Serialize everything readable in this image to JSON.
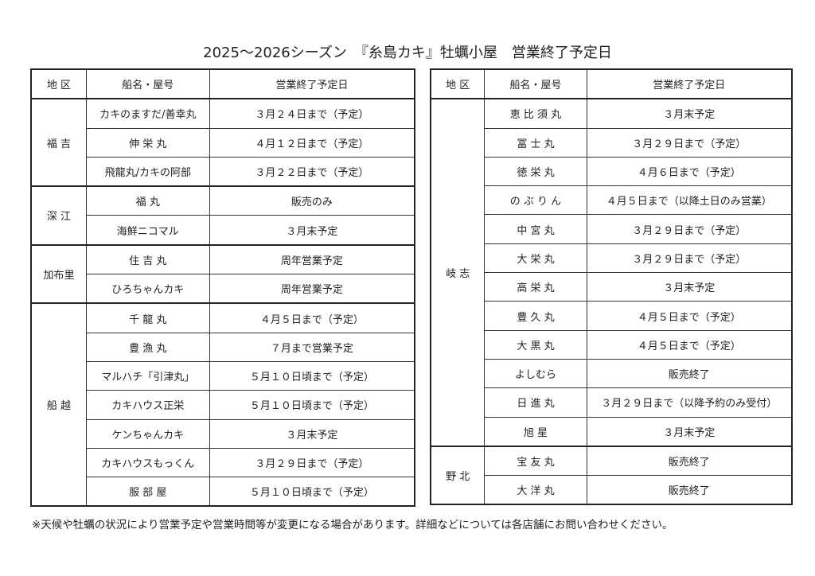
{
  "title": "2025〜2026シーズン　『糸島カキ』牡蠣小屋　営業終了予定日",
  "tables": [
    {
      "headers": [
        "地 区",
        "船名・屋号",
        "営業終了予定日"
      ],
      "groups": [
        {
          "area": "福 吉",
          "rows": [
            [
              "カキのますだ/善幸丸",
              "３月２４日まで（予定）"
            ],
            [
              "伸 栄 丸",
              "４月１２日まで（予定）"
            ],
            [
              "飛龍丸/カキの阿部",
              "３月２２日まで（予定）"
            ]
          ]
        },
        {
          "area": "深 江",
          "rows": [
            [
              "福 丸",
              "販売のみ"
            ],
            [
              "海鮮ニコマル",
              "３月末予定"
            ]
          ]
        },
        {
          "area": "加布里",
          "rows": [
            [
              "住 吉 丸",
              "周年営業予定"
            ],
            [
              "ひろちゃんカキ",
              "周年営業予定"
            ]
          ]
        },
        {
          "area": "船 越",
          "rows": [
            [
              "千 龍 丸",
              "４月５日まで（予定）"
            ],
            [
              "豊 漁 丸",
              "７月まで営業予定"
            ],
            [
              "マルハチ「引津丸」",
              "５月１０日頃まで（予定）"
            ],
            [
              "カキハウス正栄",
              "５月１０日頃まで（予定）"
            ],
            [
              "ケンちゃんカキ",
              "３月末予定"
            ],
            [
              "カキハウスもっくん",
              "３月２９日まで（予定）"
            ],
            [
              "服 部 屋",
              "５月１０日頃まで（予定）"
            ]
          ]
        }
      ]
    },
    {
      "headers": [
        "地 区",
        "船名・屋号",
        "営業終了予定日"
      ],
      "groups": [
        {
          "area": "岐 志",
          "rows": [
            [
              "恵 比 須 丸",
              "３月末予定"
            ],
            [
              "冨 士 丸",
              "３月２９日まで（予定）"
            ],
            [
              "徳 栄 丸",
              "４月６日まで（予定）"
            ],
            [
              "の ぶ り ん",
              "４月５日まで（以降土日のみ営業）"
            ],
            [
              "中 宮 丸",
              "３月２９日まで（予定）"
            ],
            [
              "大 栄 丸",
              "３月２９日まで（予定）"
            ],
            [
              "高 栄 丸",
              "３月末予定"
            ],
            [
              "豊 久 丸",
              "４月５日まで（予定）"
            ],
            [
              "大 黒 丸",
              "４月５日まで（予定）"
            ],
            [
              "よしむら",
              "販売終了"
            ],
            [
              "日 進 丸",
              "３月２９日まで（以降予約のみ受付）"
            ],
            [
              "旭 星",
              "３月末予定"
            ]
          ]
        },
        {
          "area": "野 北",
          "rows": [
            [
              "宝 友 丸",
              "販売終了"
            ],
            [
              "大 洋 丸",
              "販売終了"
            ]
          ]
        }
      ]
    }
  ],
  "note": "※天候や牡蠣の状況により営業予定や営業時間等が変更になる場合があります。詳細などについては各店舗にお問い合わせください。"
}
